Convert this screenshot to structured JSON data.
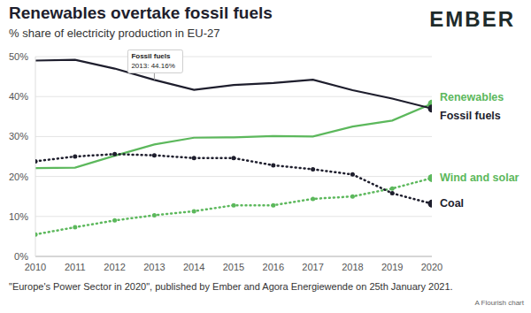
{
  "chart_data": {
    "type": "line",
    "title": "Renewables overtake fossil fuels",
    "subtitle": "% share of electricity production in EU-27",
    "logo": "EMBER",
    "source": "\"Europe's Power Sector in 2020\", published by Ember and Agora Energiewende on 25th January 2021.",
    "credit": "A Flourish chart",
    "x": [
      2010,
      2011,
      2012,
      2013,
      2014,
      2015,
      2016,
      2017,
      2018,
      2019,
      2020
    ],
    "xlim": [
      2010,
      2020
    ],
    "xticks": [
      2010,
      2011,
      2012,
      2013,
      2014,
      2015,
      2016,
      2017,
      2018,
      2019,
      2020
    ],
    "ylim": [
      0,
      50
    ],
    "yticks": [
      {
        "value": 0,
        "label": "0%"
      },
      {
        "value": 10,
        "label": "10%"
      },
      {
        "value": 20,
        "label": "20%"
      },
      {
        "value": 30,
        "label": "30%"
      },
      {
        "value": 40,
        "label": "40%"
      },
      {
        "value": 50,
        "label": "50%"
      }
    ],
    "grid": true,
    "series": [
      {
        "name": "Renewables",
        "color": "#5cb85c",
        "line_style": "solid",
        "marker": "end",
        "values": [
          22.1,
          22.2,
          25.2,
          28,
          29.7,
          29.8,
          30.1,
          30,
          32.5,
          34,
          38.2
        ]
      },
      {
        "name": "Fossil fuels",
        "color": "#1e1e2d",
        "line_style": "solid",
        "marker": "end",
        "values": [
          49,
          49.2,
          47,
          44.16,
          41.7,
          42.9,
          43.4,
          44.2,
          41.6,
          39.5,
          37
        ]
      },
      {
        "name": "Wind and solar",
        "color": "#5cb85c",
        "line_style": "dotted",
        "marker": "circle",
        "values": [
          5.5,
          7.3,
          9,
          10.3,
          11.3,
          12.8,
          12.8,
          14.4,
          15,
          17,
          19.6
        ]
      },
      {
        "name": "Coal",
        "color": "#1e1e2d",
        "line_style": "dotted",
        "marker": "circle",
        "values": [
          23.8,
          25,
          25.6,
          25.3,
          24.6,
          24.6,
          22.8,
          21.8,
          20.5,
          15.8,
          13.2
        ]
      }
    ],
    "annotations": [
      {
        "title": "Fossil fuels",
        "text": "2013: 44.16%",
        "x": 2013,
        "y": 44.16
      }
    ]
  }
}
